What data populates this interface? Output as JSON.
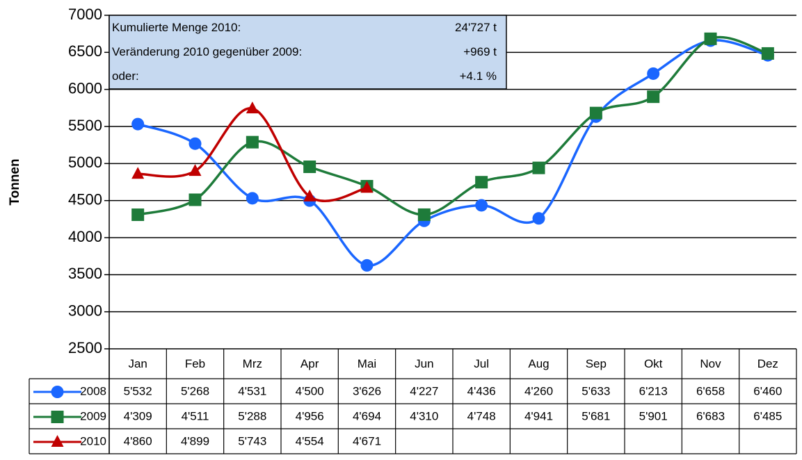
{
  "chart_data": {
    "type": "line",
    "y_label": "Tonnen",
    "categories": [
      "Jan",
      "Feb",
      "Mrz",
      "Apr",
      "Mai",
      "Jun",
      "Jul",
      "Aug",
      "Sep",
      "Okt",
      "Nov",
      "Dez"
    ],
    "series": [
      {
        "name": "2008",
        "color": "#1a66ff",
        "marker": "circle",
        "values": [
          5532,
          5268,
          4531,
          4500,
          3626,
          4227,
          4436,
          4260,
          5633,
          6213,
          6658,
          6460
        ],
        "value_labels": [
          "5'532",
          "5'268",
          "4'531",
          "4'500",
          "3'626",
          "4'227",
          "4'436",
          "4'260",
          "5'633",
          "6'213",
          "6'658",
          "6'460"
        ]
      },
      {
        "name": "2009",
        "color": "#1e7b3a",
        "marker": "square",
        "values": [
          4309,
          4511,
          5288,
          4956,
          4694,
          4310,
          4748,
          4941,
          5681,
          5901,
          6683,
          6485
        ],
        "value_labels": [
          "4'309",
          "4'511",
          "5'288",
          "4'956",
          "4'694",
          "4'310",
          "4'748",
          "4'941",
          "5'681",
          "5'901",
          "6'683",
          "6'485"
        ]
      },
      {
        "name": "2010",
        "color": "#c00000",
        "marker": "triangle",
        "values": [
          4860,
          4899,
          5743,
          4554,
          4671,
          null,
          null,
          null,
          null,
          null,
          null,
          null
        ],
        "value_labels": [
          "4'860",
          "4'899",
          "5'743",
          "4'554",
          "4'671",
          null,
          null,
          null,
          null,
          null,
          null,
          null
        ]
      }
    ],
    "ylim": [
      2500,
      7000
    ],
    "yticks": [
      2500,
      3000,
      3500,
      4000,
      4500,
      5000,
      5500,
      6000,
      6500,
      7000
    ],
    "grid": true,
    "smooth": true,
    "annotation": {
      "rows": [
        [
          "Kumulierte Menge 2010:",
          "24'727 t"
        ],
        [
          "Veränderung 2010 gegenüber 2009:",
          "+969 t"
        ],
        [
          "oder:",
          "+4.1 %"
        ]
      ]
    }
  }
}
